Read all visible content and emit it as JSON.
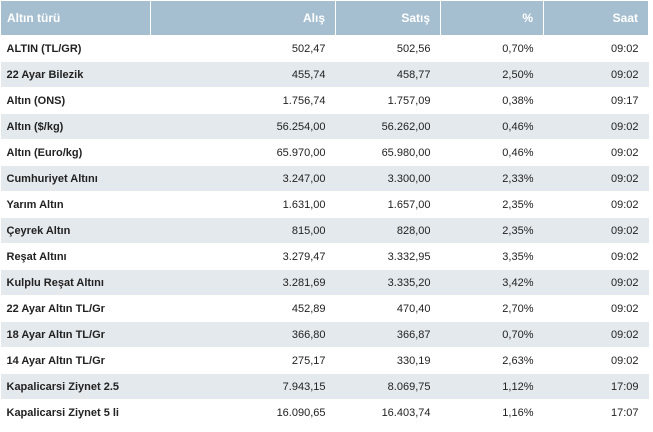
{
  "table": {
    "headers": {
      "name": "Altın türü",
      "buy": "Alış",
      "sell": "Satış",
      "pct": "%",
      "time": "Saat"
    },
    "rows": [
      {
        "name": "ALTIN (TL/GR)",
        "buy": "502,47",
        "sell": "502,56",
        "pct": "0,70%",
        "time": "09:02"
      },
      {
        "name": "22 Ayar Bilezik",
        "buy": "455,74",
        "sell": "458,77",
        "pct": "2,50%",
        "time": "09:02"
      },
      {
        "name": "Altın (ONS)",
        "buy": "1.756,74",
        "sell": "1.757,09",
        "pct": "0,38%",
        "time": "09:17"
      },
      {
        "name": "Altın ($/kg)",
        "buy": "56.254,00",
        "sell": "56.262,00",
        "pct": "0,46%",
        "time": "09:02"
      },
      {
        "name": "Altın (Euro/kg)",
        "buy": "65.970,00",
        "sell": "65.980,00",
        "pct": "0,46%",
        "time": "09:02"
      },
      {
        "name": "Cumhuriyet Altını",
        "buy": "3.247,00",
        "sell": "3.300,00",
        "pct": "2,33%",
        "time": "09:02"
      },
      {
        "name": "Yarım Altın",
        "buy": "1.631,00",
        "sell": "1.657,00",
        "pct": "2,35%",
        "time": "09:02"
      },
      {
        "name": "Çeyrek Altın",
        "buy": "815,00",
        "sell": "828,00",
        "pct": "2,35%",
        "time": "09:02"
      },
      {
        "name": "Reşat Altını",
        "buy": "3.279,47",
        "sell": "3.332,95",
        "pct": "3,35%",
        "time": "09:02"
      },
      {
        "name": "Kulplu Reşat Altını",
        "buy": "3.281,69",
        "sell": "3.335,20",
        "pct": "3,42%",
        "time": "09:02"
      },
      {
        "name": "22 Ayar Altın TL/Gr",
        "buy": "452,89",
        "sell": "470,40",
        "pct": "2,70%",
        "time": "09:02"
      },
      {
        "name": "18 Ayar Altın TL/Gr",
        "buy": "366,80",
        "sell": "366,87",
        "pct": "0,70%",
        "time": "09:02"
      },
      {
        "name": "14 Ayar Altın TL/Gr",
        "buy": "275,17",
        "sell": "330,19",
        "pct": "2,63%",
        "time": "09:02"
      },
      {
        "name": "Kapalicarsi Ziynet 2.5",
        "buy": "7.943,15",
        "sell": "8.069,75",
        "pct": "1,12%",
        "time": "17:09"
      },
      {
        "name": "Kapalicarsi Ziynet 5 li",
        "buy": "16.090,65",
        "sell": "16.403,74",
        "pct": "1,16%",
        "time": "17:07"
      }
    ]
  },
  "colors": {
    "header_bg": "#a6bfd0",
    "header_text": "#ffffff",
    "row_alt_bg": "#e4e9ed",
    "text": "#222222"
  }
}
